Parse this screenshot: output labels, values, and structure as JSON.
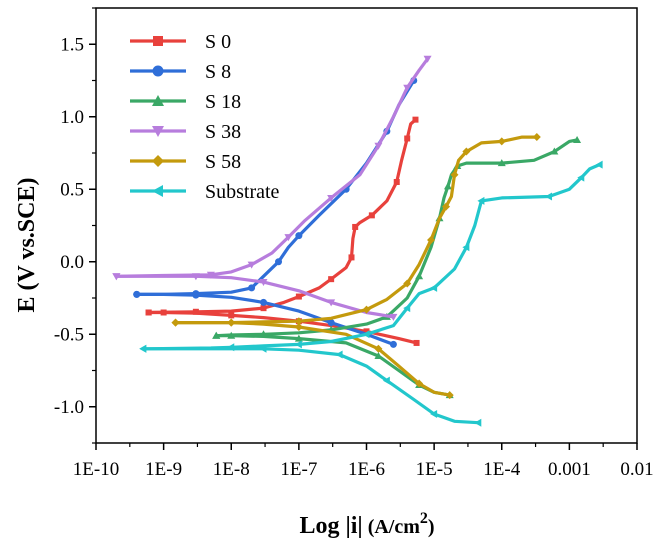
{
  "chart_data": {
    "type": "line",
    "title": "",
    "xlabel": "Log |i| (A/cm2)",
    "xlabel_parts": {
      "main": "Log |i|",
      "unit_open": " (A/cm",
      "sup": "2",
      "unit_close": ")"
    },
    "ylabel": "E (V vs.SCE)",
    "x_scale": "log",
    "xlim": [
      1e-10,
      0.01
    ],
    "ylim": [
      -1.25,
      1.75
    ],
    "x_ticks": [
      1e-10,
      1e-09,
      1e-08,
      1e-07,
      1e-06,
      1e-05,
      0.0001,
      0.001,
      0.01
    ],
    "x_tick_labels": [
      "1E-10",
      "1E-9",
      "1E-8",
      "1E-7",
      "1E-6",
      "1E-5",
      "1E-4",
      "0.001",
      "0.01"
    ],
    "y_ticks": [
      1.5,
      1.0,
      0.5,
      0.0,
      -0.5,
      -1.0
    ],
    "y_tick_labels": [
      "1.5",
      "1.0",
      "0.5",
      "0.0",
      "-0.5",
      "-1.0"
    ],
    "legend_position": "top-left",
    "grid": false,
    "series": [
      {
        "name": "S 0",
        "color": "#e8413c",
        "marker": "square",
        "cathodic": [
          [
            5.5e-06,
            -0.56
          ],
          [
            3e-06,
            -0.53
          ],
          [
            1e-06,
            -0.48
          ],
          [
            3e-07,
            -0.44
          ],
          [
            1e-07,
            -0.41
          ],
          [
            3e-08,
            -0.385
          ],
          [
            1e-08,
            -0.37
          ],
          [
            3e-09,
            -0.355
          ],
          [
            1e-09,
            -0.35
          ],
          [
            6e-10,
            -0.35
          ]
        ],
        "anodic": [
          [
            6e-10,
            -0.35
          ],
          [
            1e-09,
            -0.348
          ],
          [
            3e-09,
            -0.345
          ],
          [
            1e-08,
            -0.34
          ],
          [
            3e-08,
            -0.32
          ],
          [
            6e-08,
            -0.28
          ],
          [
            1e-07,
            -0.24
          ],
          [
            2e-07,
            -0.18
          ],
          [
            3e-07,
            -0.12
          ],
          [
            5e-07,
            -0.04
          ],
          [
            6e-07,
            0.03
          ],
          [
            6.3e-07,
            0.16
          ],
          [
            6.8e-07,
            0.24
          ],
          [
            8e-07,
            0.27
          ],
          [
            1.2e-06,
            0.32
          ],
          [
            2e-06,
            0.42
          ],
          [
            2.8e-06,
            0.55
          ],
          [
            3.3e-06,
            0.7
          ],
          [
            4e-06,
            0.85
          ],
          [
            4.5e-06,
            0.95
          ],
          [
            5.3e-06,
            0.98
          ]
        ]
      },
      {
        "name": "S 8",
        "color": "#2f6ed8",
        "marker": "circle",
        "cathodic": [
          [
            2.5e-06,
            -0.57
          ],
          [
            1e-06,
            -0.5
          ],
          [
            3e-07,
            -0.42
          ],
          [
            1e-07,
            -0.34
          ],
          [
            3e-08,
            -0.28
          ],
          [
            1e-08,
            -0.245
          ],
          [
            3e-09,
            -0.23
          ],
          [
            1e-09,
            -0.225
          ],
          [
            4e-10,
            -0.225
          ]
        ],
        "anodic": [
          [
            4e-10,
            -0.225
          ],
          [
            1e-09,
            -0.225
          ],
          [
            3e-09,
            -0.22
          ],
          [
            1e-08,
            -0.21
          ],
          [
            2e-08,
            -0.18
          ],
          [
            3e-08,
            -0.1
          ],
          [
            5e-08,
            0.0
          ],
          [
            7e-08,
            0.1
          ],
          [
            1e-07,
            0.18
          ],
          [
            2e-07,
            0.32
          ],
          [
            5e-07,
            0.5
          ],
          [
            1e-06,
            0.68
          ],
          [
            2e-06,
            0.9
          ],
          [
            3e-06,
            1.08
          ],
          [
            5e-06,
            1.25
          ]
        ]
      },
      {
        "name": "S 18",
        "color": "#3aa866",
        "marker": "triangle-up",
        "cathodic": [
          [
            1.7e-05,
            -0.92
          ],
          [
            1e-05,
            -0.9
          ],
          [
            6e-06,
            -0.85
          ],
          [
            3e-06,
            -0.75
          ],
          [
            1.5e-06,
            -0.65
          ],
          [
            5e-07,
            -0.56
          ],
          [
            1e-07,
            -0.53
          ],
          [
            3e-08,
            -0.515
          ],
          [
            1e-08,
            -0.51
          ],
          [
            6e-09,
            -0.51
          ]
        ],
        "anodic": [
          [
            6e-09,
            -0.51
          ],
          [
            1e-08,
            -0.505
          ],
          [
            3e-08,
            -0.5
          ],
          [
            1e-07,
            -0.49
          ],
          [
            3e-07,
            -0.47
          ],
          [
            1e-06,
            -0.43
          ],
          [
            2e-06,
            -0.38
          ],
          [
            4e-06,
            -0.25
          ],
          [
            6e-06,
            -0.1
          ],
          [
            9e-06,
            0.1
          ],
          [
            1.2e-05,
            0.3
          ],
          [
            1.4e-05,
            0.44
          ],
          [
            1.6e-05,
            0.52
          ],
          [
            1.8e-05,
            0.6
          ],
          [
            2.2e-05,
            0.66
          ],
          [
            3e-05,
            0.68
          ],
          [
            0.0001,
            0.68
          ],
          [
            0.0003,
            0.7
          ],
          [
            0.0006,
            0.76
          ],
          [
            0.001,
            0.83
          ],
          [
            0.0013,
            0.84
          ]
        ]
      },
      {
        "name": "S 38",
        "color": "#b77ddd",
        "marker": "triangle-down",
        "cathodic": [
          [
            2.5e-06,
            -0.38
          ],
          [
            1e-06,
            -0.35
          ],
          [
            3e-07,
            -0.28
          ],
          [
            1e-07,
            -0.2
          ],
          [
            3e-08,
            -0.14
          ],
          [
            1e-08,
            -0.11
          ],
          [
            3e-09,
            -0.1
          ],
          [
            1e-09,
            -0.1
          ],
          [
            2e-10,
            -0.1
          ]
        ],
        "anodic": [
          [
            2e-10,
            -0.1
          ],
          [
            1e-09,
            -0.095
          ],
          [
            5e-09,
            -0.09
          ],
          [
            1e-08,
            -0.07
          ],
          [
            2e-08,
            -0.02
          ],
          [
            4e-08,
            0.06
          ],
          [
            7e-08,
            0.17
          ],
          [
            1.2e-07,
            0.28
          ],
          [
            3e-07,
            0.44
          ],
          [
            8e-07,
            0.6
          ],
          [
            1.5e-06,
            0.8
          ],
          [
            2.5e-06,
            1.0
          ],
          [
            4e-06,
            1.2
          ],
          [
            6e-06,
            1.32
          ],
          [
            8e-06,
            1.4
          ]
        ]
      },
      {
        "name": "S 58",
        "color": "#c49a0d",
        "marker": "diamond",
        "cathodic": [
          [
            1.7e-05,
            -0.92
          ],
          [
            1e-05,
            -0.9
          ],
          [
            6e-06,
            -0.84
          ],
          [
            3e-06,
            -0.72
          ],
          [
            1.5e-06,
            -0.6
          ],
          [
            5e-07,
            -0.5
          ],
          [
            1e-07,
            -0.45
          ],
          [
            3e-08,
            -0.43
          ],
          [
            1e-08,
            -0.42
          ],
          [
            1.5e-09,
            -0.42
          ]
        ],
        "anodic": [
          [
            1.5e-09,
            -0.42
          ],
          [
            5e-09,
            -0.42
          ],
          [
            1e-08,
            -0.42
          ],
          [
            3e-08,
            -0.415
          ],
          [
            1e-07,
            -0.41
          ],
          [
            3e-07,
            -0.39
          ],
          [
            1e-06,
            -0.33
          ],
          [
            2e-06,
            -0.26
          ],
          [
            4e-06,
            -0.15
          ],
          [
            6e-06,
            -0.02
          ],
          [
            9e-06,
            0.15
          ],
          [
            1.2e-05,
            0.3
          ],
          [
            1.5e-05,
            0.38
          ],
          [
            1.8e-05,
            0.45
          ],
          [
            2e-05,
            0.6
          ],
          [
            2.3e-05,
            0.7
          ],
          [
            3e-05,
            0.76
          ],
          [
            5e-05,
            0.82
          ],
          [
            0.0001,
            0.83
          ],
          [
            0.0002,
            0.86
          ],
          [
            0.00033,
            0.86
          ]
        ]
      },
      {
        "name": "Substrate",
        "color": "#22c7cc",
        "marker": "triangle-left",
        "cathodic": [
          [
            4.5e-05,
            -1.11
          ],
          [
            2e-05,
            -1.1
          ],
          [
            1e-05,
            -1.05
          ],
          [
            5e-06,
            -0.95
          ],
          [
            2e-06,
            -0.82
          ],
          [
            1e-06,
            -0.72
          ],
          [
            4e-07,
            -0.64
          ],
          [
            1e-07,
            -0.61
          ],
          [
            3e-08,
            -0.6
          ],
          [
            5e-09,
            -0.6
          ],
          [
            5e-10,
            -0.6
          ]
        ],
        "anodic": [
          [
            5e-10,
            -0.6
          ],
          [
            5e-09,
            -0.595
          ],
          [
            1e-08,
            -0.59
          ],
          [
            3e-08,
            -0.58
          ],
          [
            1e-07,
            -0.57
          ],
          [
            3e-07,
            -0.55
          ],
          [
            1e-06,
            -0.5
          ],
          [
            2.5e-06,
            -0.44
          ],
          [
            4e-06,
            -0.32
          ],
          [
            6e-06,
            -0.22
          ],
          [
            1e-05,
            -0.18
          ],
          [
            2e-05,
            -0.05
          ],
          [
            3e-05,
            0.1
          ],
          [
            4e-05,
            0.25
          ],
          [
            5e-05,
            0.42
          ],
          [
            0.0001,
            0.44
          ],
          [
            0.0005,
            0.45
          ],
          [
            0.001,
            0.5
          ],
          [
            0.0015,
            0.58
          ],
          [
            0.002,
            0.64
          ],
          [
            0.0028,
            0.67
          ]
        ]
      }
    ]
  }
}
